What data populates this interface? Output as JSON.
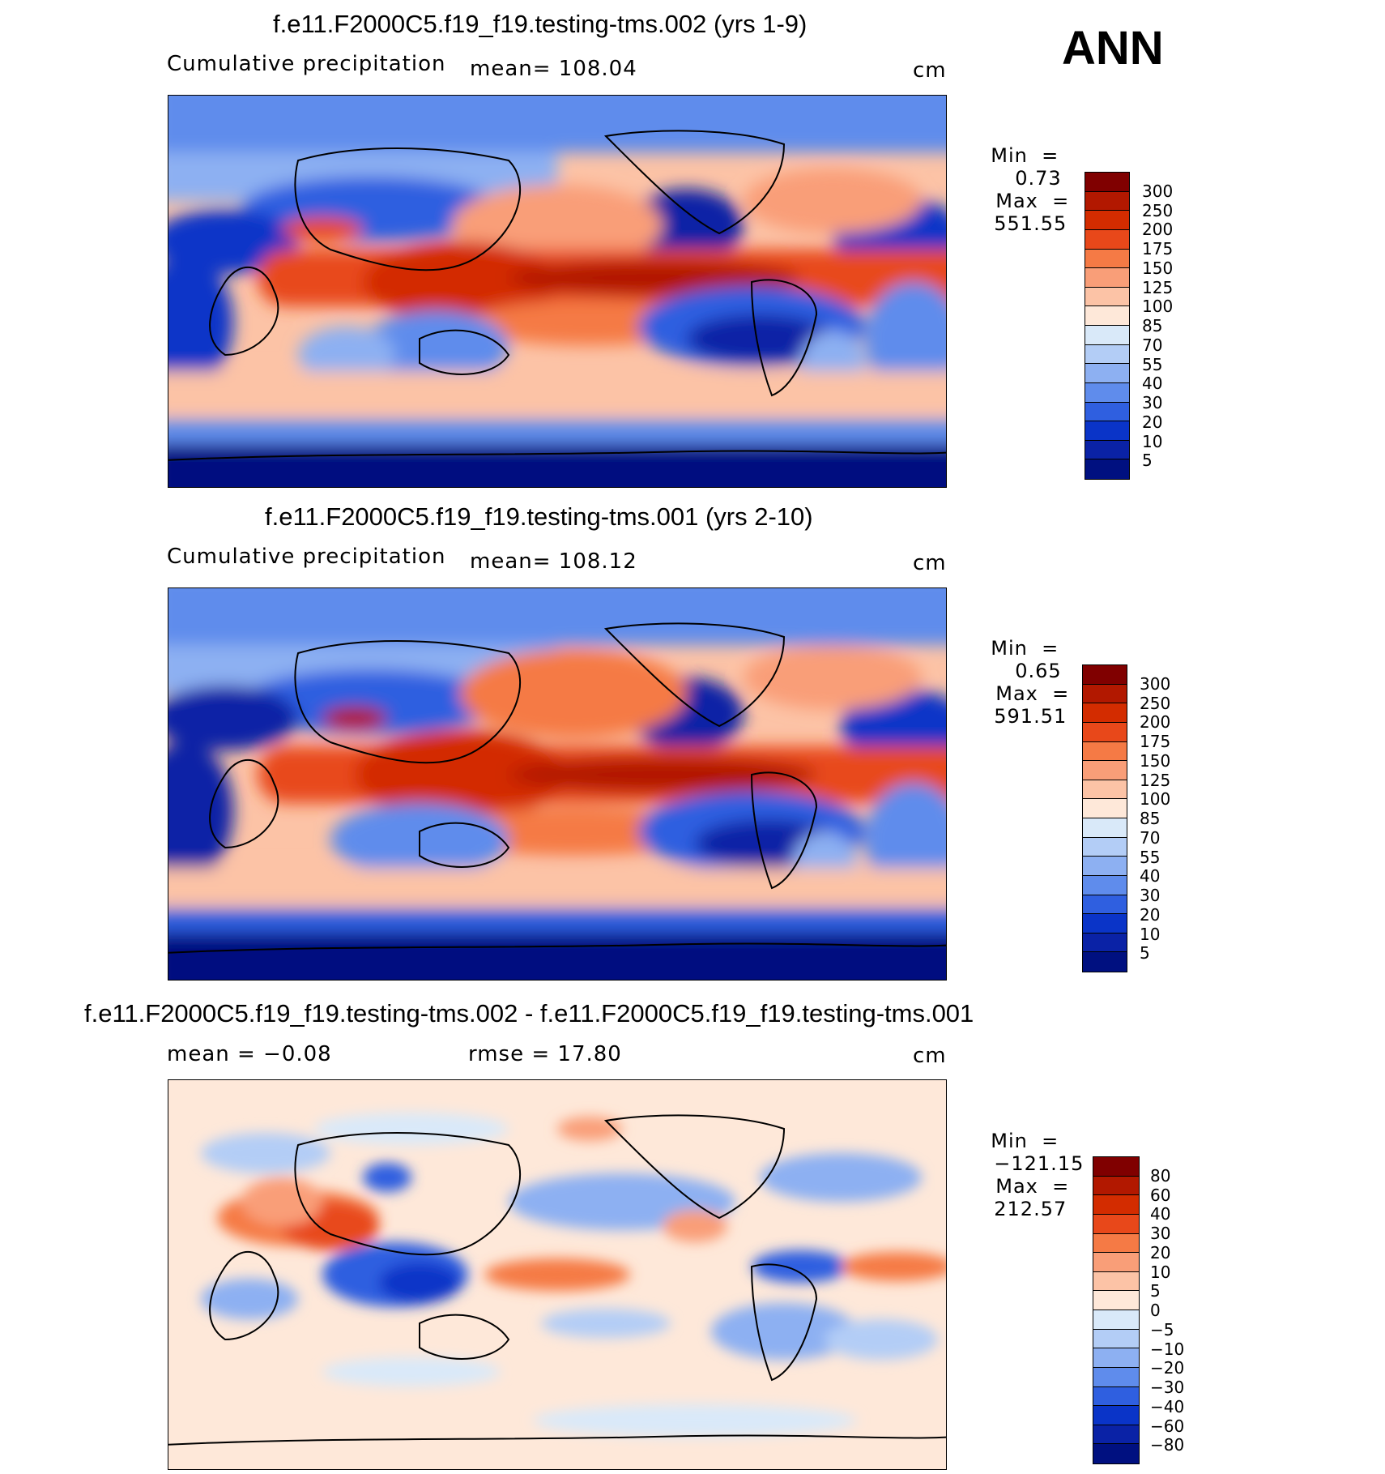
{
  "header": {
    "season": "ANN"
  },
  "panels": [
    {
      "title": "f.e11.F2000C5.f19_f19.testing-tms.002 (yrs 1-9)",
      "left_label": "Cumulative precipitation",
      "center_label": "mean=  108.04",
      "units": "cm",
      "min_label": "Min  =",
      "min_value": "0.73",
      "max_label": "Max  =",
      "max_value": "551.55",
      "legend_labels": [
        "300",
        "250",
        "200",
        "175",
        "150",
        "125",
        "100",
        "85",
        "70",
        "55",
        "40",
        "30",
        "20",
        "10",
        "5"
      ],
      "legend_colors": [
        "#800000",
        "#b21800",
        "#d32c00",
        "#e8481a",
        "#f57a45",
        "#f99e78",
        "#fcc3a6",
        "#fee8d9",
        "#d9e9f9",
        "#b3cdf6",
        "#8db0f2",
        "#5f8cec",
        "#2f5fe0",
        "#0a34c8",
        "#0a22a6",
        "#001080"
      ]
    },
    {
      "title": "f.e11.F2000C5.f19_f19.testing-tms.001 (yrs 2-10)",
      "left_label": "Cumulative precipitation",
      "center_label": "mean=  108.12",
      "units": "cm",
      "min_label": "Min  =",
      "min_value": "0.65",
      "max_label": "Max  =",
      "max_value": "591.51",
      "legend_labels": [
        "300",
        "250",
        "200",
        "175",
        "150",
        "125",
        "100",
        "85",
        "70",
        "55",
        "40",
        "30",
        "20",
        "10",
        "5"
      ],
      "legend_colors": [
        "#800000",
        "#b21800",
        "#d32c00",
        "#e8481a",
        "#f57a45",
        "#f99e78",
        "#fcc3a6",
        "#fee8d9",
        "#d9e9f9",
        "#b3cdf6",
        "#8db0f2",
        "#5f8cec",
        "#2f5fe0",
        "#0a34c8",
        "#0a22a6",
        "#001080"
      ]
    },
    {
      "title": "f.e11.F2000C5.f19_f19.testing-tms.002 - f.e11.F2000C5.f19_f19.testing-tms.001",
      "left_label": "mean =   −0.08",
      "center_label": "rmse =   17.80",
      "units": "cm",
      "min_label": "Min  =",
      "min_value": "−121.15",
      "max_label": "Max  =",
      "max_value": "212.57",
      "legend_labels": [
        "80",
        "60",
        "40",
        "30",
        "20",
        "10",
        "5",
        "0",
        "−5",
        "−10",
        "−20",
        "−30",
        "−40",
        "−60",
        "−80"
      ],
      "legend_colors": [
        "#800000",
        "#b21800",
        "#d32c00",
        "#e8481a",
        "#f57a45",
        "#f99e78",
        "#fcc3a6",
        "#fee8d9",
        "#d9e9f9",
        "#b3cdf6",
        "#8db0f2",
        "#5f8cec",
        "#2f5fe0",
        "#0a34c8",
        "#0a22a6",
        "#001080"
      ]
    }
  ]
}
